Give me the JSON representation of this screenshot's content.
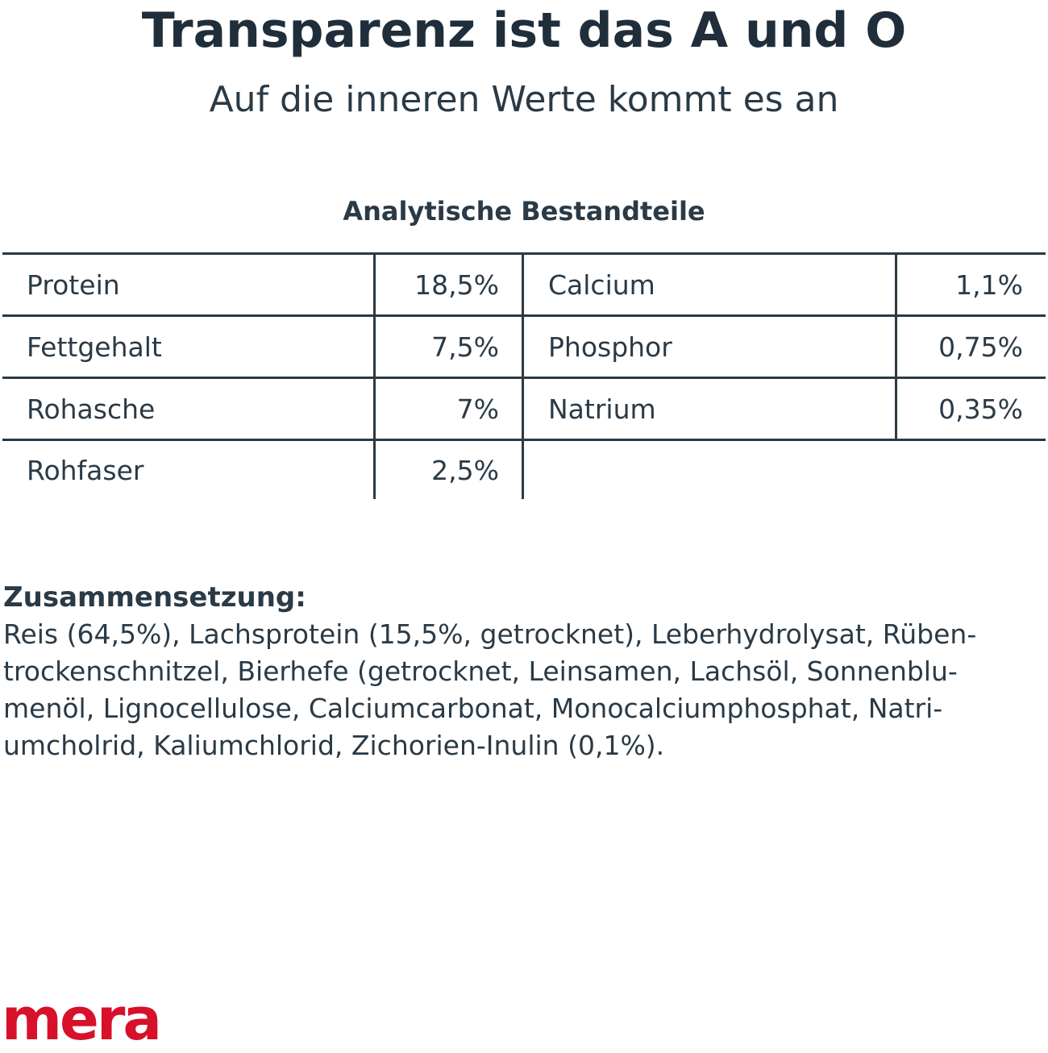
{
  "header": {
    "title": "Transparenz ist das A und O",
    "subtitle": "Auf die inneren Werte kommt es an"
  },
  "analysis": {
    "heading": "Analytische Bestandteile",
    "rows": [
      {
        "left_label": "Protein",
        "left_value": "18,5%",
        "right_label": "Calcium",
        "right_value": "1,1%"
      },
      {
        "left_label": "Fettgehalt",
        "left_value": "7,5%",
        "right_label": "Phosphor",
        "right_value": "0,75%"
      },
      {
        "left_label": "Rohasche",
        "left_value": "7%",
        "right_label": "Natrium",
        "right_value": "0,35%"
      },
      {
        "left_label": "Rohfaser",
        "left_value": "2,5%",
        "right_label": "",
        "right_value": ""
      }
    ]
  },
  "composition": {
    "heading": "Zusammensetzung:",
    "text": "Reis (64,5%), Lachsprotein (15,5%, getrocknet), Leberhydrolysat, Rüben- trockenschnitzel, Bierhefe (getrocknet, Leinsamen, Lachsöl, Sonnenblu- menöl, Lignocellulose, Calciumcarbonat, Monocalciumphosphat, Natri- umcholrid, Kaliumchlorid, Zichorien-Inulin (0,1%)."
  },
  "brand": {
    "logo_text": "mera",
    "color": "#d7112a"
  },
  "colors": {
    "text": "#1f2e3a",
    "lines": "#2a3a46"
  }
}
